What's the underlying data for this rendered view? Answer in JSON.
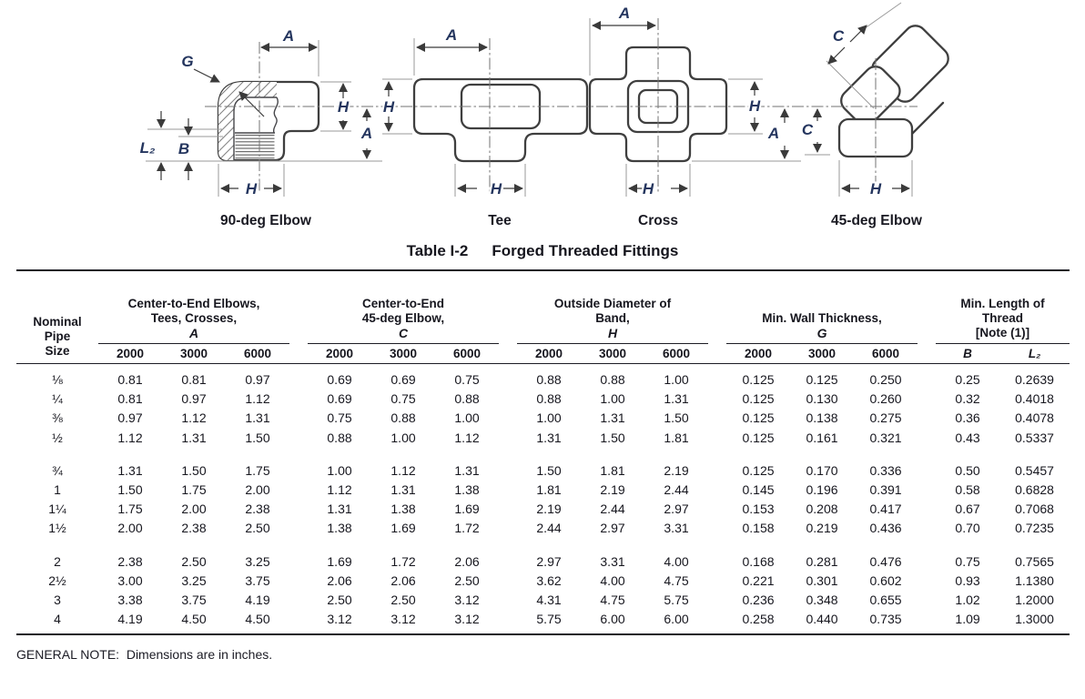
{
  "colors": {
    "label_blue": "#24355e",
    "line_dark": "#3f3f3f",
    "rule_dark": "#1c1c24",
    "background": "#ffffff"
  },
  "figures": {
    "captions": {
      "elbow90": "90-deg Elbow",
      "tee": "Tee",
      "cross": "Cross",
      "elbow45": "45-deg Elbow"
    },
    "dims": {
      "A": "A",
      "H": "H",
      "C": "C",
      "G": "G",
      "B": "B",
      "L2": "L₂"
    }
  },
  "table": {
    "title_prefix": "Table I-2",
    "title": "Forged Threaded Fittings",
    "col0_lines": [
      "Nominal",
      "Pipe",
      "Size"
    ],
    "groups": [
      {
        "title_lines": [
          "Center-to-End Elbows,",
          "Tees, Crosses,"
        ],
        "symbol": "A",
        "subcols": [
          "2000",
          "3000",
          "6000"
        ]
      },
      {
        "title_lines": [
          "Center-to-End",
          "45-deg Elbow,"
        ],
        "symbol": "C",
        "subcols": [
          "2000",
          "3000",
          "6000"
        ]
      },
      {
        "title_lines": [
          "Outside Diameter of",
          "Band,"
        ],
        "symbol": "H",
        "subcols": [
          "2000",
          "3000",
          "6000"
        ]
      },
      {
        "title_lines": [
          "Min. Wall Thickness,"
        ],
        "symbol": "G",
        "subcols": [
          "2000",
          "3000",
          "6000"
        ]
      },
      {
        "title_lines": [
          "Min. Length of",
          "Thread",
          "[Note (1)]"
        ],
        "symbol": "",
        "subcols": [
          "B",
          "L₂"
        ]
      }
    ],
    "row_groups": [
      [
        {
          "size": "⅛",
          "values": [
            "0.81",
            "0.81",
            "0.97",
            "0.69",
            "0.69",
            "0.75",
            "0.88",
            "0.88",
            "1.00",
            "0.125",
            "0.125",
            "0.250",
            "0.25",
            "0.2639"
          ]
        },
        {
          "size": "¼",
          "values": [
            "0.81",
            "0.97",
            "1.12",
            "0.69",
            "0.75",
            "0.88",
            "0.88",
            "1.00",
            "1.31",
            "0.125",
            "0.130",
            "0.260",
            "0.32",
            "0.4018"
          ]
        },
        {
          "size": "⅜",
          "values": [
            "0.97",
            "1.12",
            "1.31",
            "0.75",
            "0.88",
            "1.00",
            "1.00",
            "1.31",
            "1.50",
            "0.125",
            "0.138",
            "0.275",
            "0.36",
            "0.4078"
          ]
        },
        {
          "size": "½",
          "values": [
            "1.12",
            "1.31",
            "1.50",
            "0.88",
            "1.00",
            "1.12",
            "1.31",
            "1.50",
            "1.81",
            "0.125",
            "0.161",
            "0.321",
            "0.43",
            "0.5337"
          ]
        }
      ],
      [
        {
          "size": "¾",
          "values": [
            "1.31",
            "1.50",
            "1.75",
            "1.00",
            "1.12",
            "1.31",
            "1.50",
            "1.81",
            "2.19",
            "0.125",
            "0.170",
            "0.336",
            "0.50",
            "0.5457"
          ]
        },
        {
          "size": "1",
          "values": [
            "1.50",
            "1.75",
            "2.00",
            "1.12",
            "1.31",
            "1.38",
            "1.81",
            "2.19",
            "2.44",
            "0.145",
            "0.196",
            "0.391",
            "0.58",
            "0.6828"
          ]
        },
        {
          "size": "1¼",
          "values": [
            "1.75",
            "2.00",
            "2.38",
            "1.31",
            "1.38",
            "1.69",
            "2.19",
            "2.44",
            "2.97",
            "0.153",
            "0.208",
            "0.417",
            "0.67",
            "0.7068"
          ]
        },
        {
          "size": "1½",
          "values": [
            "2.00",
            "2.38",
            "2.50",
            "1.38",
            "1.69",
            "1.72",
            "2.44",
            "2.97",
            "3.31",
            "0.158",
            "0.219",
            "0.436",
            "0.70",
            "0.7235"
          ]
        }
      ],
      [
        {
          "size": "2",
          "values": [
            "2.38",
            "2.50",
            "3.25",
            "1.69",
            "1.72",
            "2.06",
            "2.97",
            "3.31",
            "4.00",
            "0.168",
            "0.281",
            "0.476",
            "0.75",
            "0.7565"
          ]
        },
        {
          "size": "2½",
          "values": [
            "3.00",
            "3.25",
            "3.75",
            "2.06",
            "2.06",
            "2.50",
            "3.62",
            "4.00",
            "4.75",
            "0.221",
            "0.301",
            "0.602",
            "0.93",
            "1.1380"
          ]
        },
        {
          "size": "3",
          "values": [
            "3.38",
            "3.75",
            "4.19",
            "2.50",
            "2.50",
            "3.12",
            "4.31",
            "4.75",
            "5.75",
            "0.236",
            "0.348",
            "0.655",
            "1.02",
            "1.2000"
          ]
        },
        {
          "size": "4",
          "values": [
            "4.19",
            "4.50",
            "4.50",
            "3.12",
            "3.12",
            "3.12",
            "5.75",
            "6.00",
            "6.00",
            "0.258",
            "0.440",
            "0.735",
            "1.09",
            "1.3000"
          ]
        }
      ]
    ]
  },
  "general_note": "GENERAL NOTE:  Dimensions are in inches."
}
